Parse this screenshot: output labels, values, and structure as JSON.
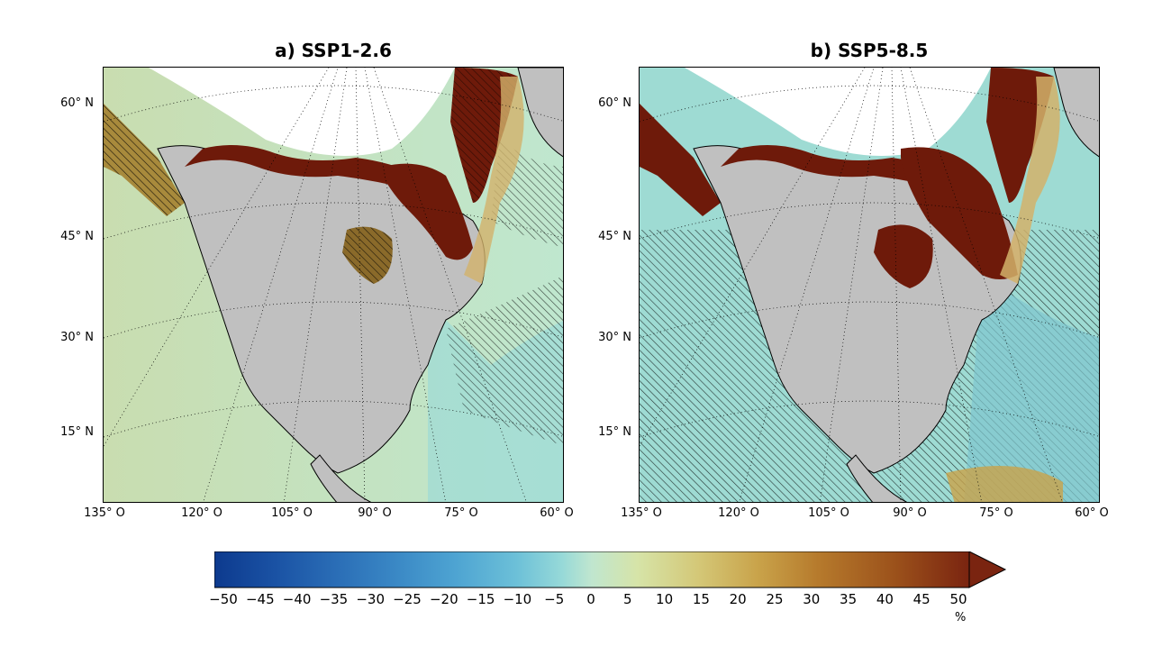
{
  "panels": [
    {
      "title": "a) SSP1-2.6",
      "lat_labels": [
        "60° N",
        "45° N",
        "30° N",
        "15° N"
      ],
      "lon_labels": [
        "135° O",
        "120° O",
        "105° O",
        "90° O",
        "75° O",
        "60° O"
      ]
    },
    {
      "title": "b) SSP5-8.5",
      "lat_labels": [
        "60° N",
        "45° N",
        "30° N",
        "15° N"
      ],
      "lon_labels": [
        "135° O",
        "120° O",
        "105° O",
        "90° O",
        "75° O",
        "60° O"
      ]
    }
  ],
  "colorbar": {
    "ticks": [
      "−50",
      "−45",
      "−40",
      "−35",
      "−30",
      "−25",
      "−20",
      "−15",
      "−10",
      "−5",
      "0",
      "5",
      "10",
      "15",
      "20",
      "25",
      "30",
      "35",
      "40",
      "45",
      "50"
    ],
    "unit": "%",
    "colors": [
      "#0d3a8e",
      "#1a52a4",
      "#2a6db6",
      "#3a88c5",
      "#4ea4d2",
      "#6cc0d8",
      "#96d9d8",
      "#c0e6cf",
      "#d6e4a8",
      "#d4c878",
      "#c9a34a",
      "#b67a2c",
      "#9c521b",
      "#7a2410"
    ]
  },
  "map_colors": {
    "land": "#c0c0c0",
    "ocean_neutral": "#bfe7cf",
    "ocean_negative": "#96d9d8",
    "ocean_blue": "#7fc6cf",
    "high_positive": "#6e1a0a",
    "ice": "#ffffff"
  }
}
